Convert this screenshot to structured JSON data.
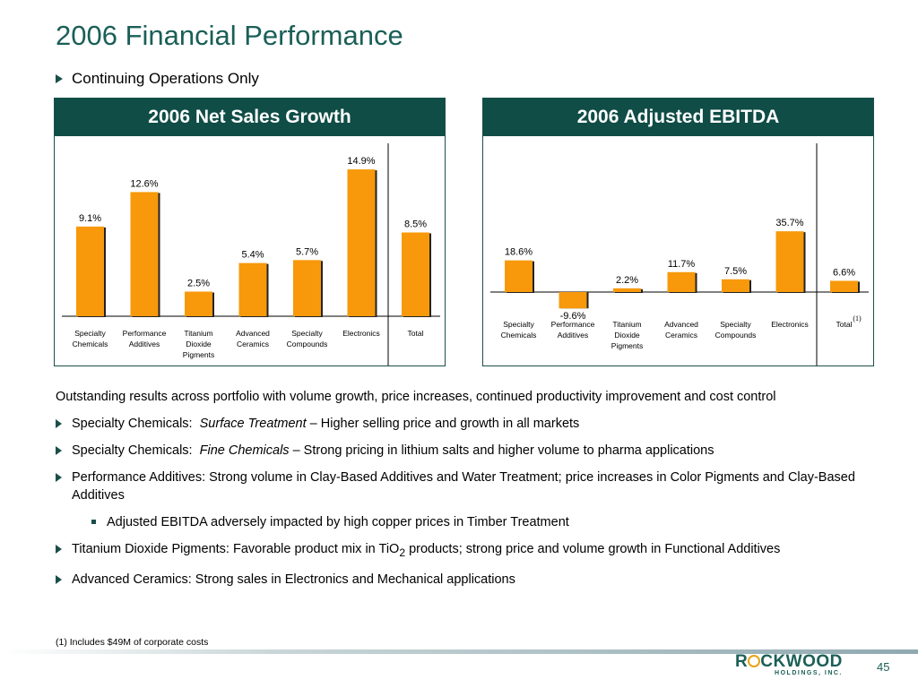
{
  "slide": {
    "title": "2006 Financial Performance",
    "subtitle": "Continuing Operations Only",
    "page_number": "45",
    "footnote": "(1) Includes $49M of corporate costs",
    "logo_text": "R CKWOOD",
    "logo_sub": "HOLDINGS, INC."
  },
  "colors": {
    "accent": "#0f4d46",
    "bar": "#f7990b",
    "bar_edge": "#222222",
    "title": "#1a5f57"
  },
  "panels": {
    "left_title": "2006 Net Sales Growth",
    "right_title": "2006 Adjusted EBITDA"
  },
  "bullets": {
    "intro": "Outstanding results across portfolio with volume growth, price increases, continued productivity improvement and cost control",
    "b1_prefix": "Specialty Chemicals:",
    "b1_em": "Surface Treatment",
    "b1_rest": " – Higher selling price and growth in all markets",
    "b2_prefix": "Specialty Chemicals:",
    "b2_em": "Fine Chemicals",
    "b2_rest": " – Strong pricing in lithium salts and higher volume to pharma applications",
    "b3": "Performance Additives:  Strong volume in Clay-Based Additives and Water Treatment; price increases in Color Pigments and Clay-Based Additives",
    "b3_sub": "Adjusted EBITDA adversely impacted by high copper prices in Timber Treatment",
    "b4_pre": "Titanium Dioxide Pigments:  Favorable product mix in TiO",
    "b4_subscript": "2",
    "b4_post": " products; strong price and volume growth in Functional Additives",
    "b5": "Advanced Ceramics:  Strong sales in Electronics and Mechanical applications"
  },
  "chart_data": [
    {
      "type": "bar",
      "title": "2006 Net Sales Growth",
      "categories": [
        [
          "Specialty",
          "Chemicals"
        ],
        [
          "Performance",
          "Additives"
        ],
        [
          "Titanium",
          "Dioxide",
          "Pigments"
        ],
        [
          "Advanced",
          "Ceramics"
        ],
        [
          "Specialty",
          "Compounds"
        ],
        [
          "Electronics"
        ],
        [
          "Total"
        ]
      ],
      "values": [
        9.1,
        12.6,
        2.5,
        5.4,
        5.7,
        14.9,
        8.5
      ],
      "labels": [
        "9.1%",
        "12.6%",
        "2.5%",
        "5.4%",
        "5.7%",
        "14.9%",
        "8.5%"
      ],
      "separator_before_last": true
    },
    {
      "type": "bar",
      "title": "2006 Adjusted EBITDA",
      "categories": [
        [
          "Specialty",
          "Chemicals"
        ],
        [
          "Performance",
          "Additives"
        ],
        [
          "Titanium",
          "Dioxide",
          "Pigments"
        ],
        [
          "Advanced",
          "Ceramics"
        ],
        [
          "Specialty",
          "Compounds"
        ],
        [
          "Electronics"
        ],
        [
          "Total"
        ]
      ],
      "values": [
        18.6,
        -9.6,
        2.2,
        11.7,
        7.5,
        35.7,
        6.6
      ],
      "labels": [
        "18.6%",
        "-9.6%",
        "2.2%",
        "11.7%",
        "7.5%",
        "35.7%",
        "6.6%"
      ],
      "separator_before_last": true,
      "last_note": "(1)"
    }
  ]
}
